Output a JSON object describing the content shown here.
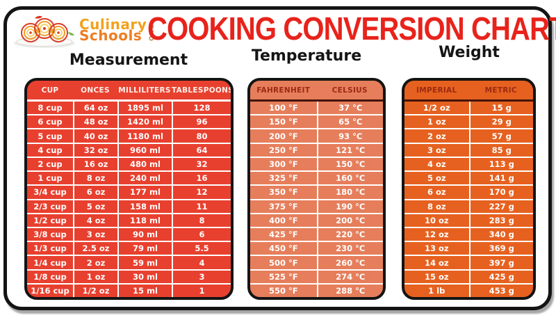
{
  "brand": {
    "logo_line1": "Culinary",
    "logo_line2": "Schools",
    "logo_suffix": "ORG",
    "logo_icon": "spaghetti-plate-icon"
  },
  "title": "COOKING CONVERSION CHART",
  "colors": {
    "title_red": "#e8231b",
    "measurement_bg": "#e8402f",
    "temperature_bg": "#e67e5b",
    "weight_bg": "#e6611f",
    "header_dark_text": "#9c2a12",
    "grid_line": "#ffffff",
    "frame_border": "#141414",
    "logo_orange_1": "#f2a11d",
    "logo_orange_2": "#ee7d22"
  },
  "chart_data": [
    {
      "type": "table",
      "title": "Measurement",
      "columns": [
        "CUP",
        "ONCES",
        "MILLILITERS",
        "TABLESPOONS"
      ],
      "rows": [
        [
          "8 cup",
          "64 oz",
          "1895 ml",
          "128"
        ],
        [
          "6 cup",
          "48 oz",
          "1420 ml",
          "96"
        ],
        [
          "5 cup",
          "40 oz",
          "1180 ml",
          "80"
        ],
        [
          "4 cup",
          "32 oz",
          "960 ml",
          "64"
        ],
        [
          "2 cup",
          "16 oz",
          "480 ml",
          "32"
        ],
        [
          "1 cup",
          "8 oz",
          "240 ml",
          "16"
        ],
        [
          "3/4 cup",
          "6 oz",
          "177 ml",
          "12"
        ],
        [
          "2/3 cup",
          "5 oz",
          "158 ml",
          "11"
        ],
        [
          "1/2 cup",
          "4 oz",
          "118 ml",
          "8"
        ],
        [
          "3/8 cup",
          "3 oz",
          "90 ml",
          "6"
        ],
        [
          "1/3 cup",
          "2.5 oz",
          "79 ml",
          "5.5"
        ],
        [
          "1/4 cup",
          "2 oz",
          "59 ml",
          "4"
        ],
        [
          "1/8 cup",
          "1 oz",
          "30 ml",
          "3"
        ],
        [
          "1/16 cup",
          "1/2 oz",
          "15 ml",
          "1"
        ]
      ]
    },
    {
      "type": "table",
      "title": "Temperature",
      "columns": [
        "FAHRENHEIT",
        "CELSIUS"
      ],
      "rows": [
        [
          "100 °F",
          "37 °C"
        ],
        [
          "150 °F",
          "65 °C"
        ],
        [
          "200 °F",
          "93 °C"
        ],
        [
          "250 °F",
          "121 °C"
        ],
        [
          "300 °F",
          "150 °C"
        ],
        [
          "325 °F",
          "160 °C"
        ],
        [
          "350 °F",
          "180 °C"
        ],
        [
          "375 °F",
          "190 °C"
        ],
        [
          "400 °F",
          "200 °C"
        ],
        [
          "425 °F",
          "220 °C"
        ],
        [
          "450 °F",
          "230 °C"
        ],
        [
          "500 °F",
          "260 °C"
        ],
        [
          "525 °F",
          "274 °C"
        ],
        [
          "550 °F",
          "288 °C"
        ]
      ]
    },
    {
      "type": "table",
      "title": "Weight",
      "columns": [
        "IMPERIAL",
        "METRIC"
      ],
      "rows": [
        [
          "1/2 oz",
          "15 g"
        ],
        [
          "1 oz",
          "29 g"
        ],
        [
          "2 oz",
          "57 g"
        ],
        [
          "3 oz",
          "85 g"
        ],
        [
          "4 oz",
          "113 g"
        ],
        [
          "5 oz",
          "141 g"
        ],
        [
          "6 oz",
          "170 g"
        ],
        [
          "8 oz",
          "227 g"
        ],
        [
          "10 oz",
          "283 g"
        ],
        [
          "12 oz",
          "340 g"
        ],
        [
          "13 oz",
          "369 g"
        ],
        [
          "14 oz",
          "397 g"
        ],
        [
          "15 oz",
          "425 g"
        ],
        [
          "1 lb",
          "453 g"
        ]
      ]
    }
  ]
}
